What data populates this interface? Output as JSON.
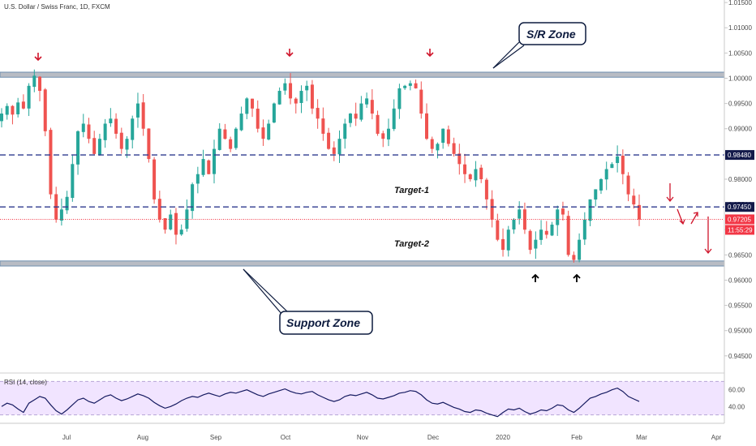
{
  "chart_data": {
    "type": "candlestick",
    "title": "U.S. Dollar / Swiss Franc, 1D, FXCM",
    "price_axis": {
      "ylim": [
        0.9416,
        1.0155
      ],
      "ticks": [
        "1.01500",
        "1.01000",
        "1.00500",
        "1.00000",
        "0.99500",
        "0.99000",
        "0.98500",
        "0.98000",
        "0.97500",
        "0.97000",
        "0.96500",
        "0.96000",
        "0.95500",
        "0.95000",
        "0.94500"
      ]
    },
    "time_axis": {
      "labels": [
        "Jul",
        "Aug",
        "Sep",
        "Oct",
        "Nov",
        "Dec",
        "2020",
        "Feb",
        "Mar",
        "Apr"
      ]
    },
    "close_path": [
      0.993,
      0.9945,
      0.9928,
      0.9952,
      0.994,
      0.9985,
      1.0005,
      0.9975,
      0.9895,
      0.977,
      0.972,
      0.974,
      0.9765,
      0.983,
      0.9895,
      0.991,
      0.988,
      0.985,
      0.988,
      0.991,
      0.992,
      0.989,
      0.986,
      0.988,
      0.992,
      0.995,
      0.99,
      0.984,
      0.976,
      0.972,
      0.97,
      0.973,
      0.969,
      0.97,
      0.974,
      0.979,
      0.981,
      0.984,
      0.981,
      0.986,
      0.99,
      0.988,
      0.986,
      0.99,
      0.993,
      0.996,
      0.994,
      0.99,
      0.988,
      0.991,
      0.995,
      0.9975,
      0.999,
      0.996,
      0.995,
      0.9975,
      0.9985,
      0.994,
      0.992,
      0.989,
      0.986,
      0.985,
      0.988,
      0.991,
      0.993,
      0.992,
      0.995,
      0.996,
      0.993,
      0.989,
      0.988,
      0.99,
      0.994,
      0.998,
      0.9985,
      0.999,
      0.998,
      0.993,
      0.988,
      0.986,
      0.987,
      0.99,
      0.987,
      0.985,
      0.983,
      0.981,
      0.98,
      0.982,
      0.98,
      0.976,
      0.972,
      0.968,
      0.966,
      0.97,
      0.972,
      0.974,
      0.97,
      0.966,
      0.968,
      0.97,
      0.969,
      0.971,
      0.974,
      0.973,
      0.965,
      0.964,
      0.968,
      0.972,
      0.976,
      0.978,
      0.98,
      0.982,
      0.983,
      0.9845,
      0.981,
      0.977,
      0.975,
      0.972
    ],
    "rsi": {
      "label": "RSI (14, close)",
      "ylim": [
        20,
        80
      ],
      "ticks": [
        "60.00",
        "40.00"
      ],
      "upper_band": 70,
      "lower_band": 30,
      "values": [
        40,
        44,
        42,
        37,
        33,
        44,
        48,
        52,
        50,
        42,
        35,
        31,
        36,
        42,
        48,
        50,
        46,
        44,
        48,
        52,
        54,
        50,
        47,
        49,
        52,
        55,
        53,
        50,
        45,
        41,
        38,
        40,
        43,
        47,
        50,
        52,
        51,
        54,
        56,
        54,
        52,
        55,
        57,
        56,
        58,
        60,
        57,
        54,
        52,
        55,
        57,
        59,
        61,
        58,
        56,
        55,
        57,
        58,
        54,
        51,
        48,
        46,
        48,
        52,
        54,
        53,
        55,
        57,
        54,
        50,
        49,
        51,
        53,
        56,
        57,
        59,
        58,
        54,
        48,
        44,
        43,
        45,
        42,
        39,
        37,
        34,
        33,
        36,
        35,
        32,
        30,
        28,
        33,
        37,
        36,
        38,
        34,
        31,
        33,
        36,
        35,
        38,
        42,
        41,
        36,
        33,
        38,
        44,
        50,
        52,
        55,
        57,
        60,
        62,
        58,
        52,
        49,
        46
      ]
    },
    "levels": {
      "resistance_zone": [
        1.0002,
        1.0012
      ],
      "support_zone": [
        0.9628,
        0.9638
      ],
      "level_1": 0.9848,
      "level_2": 0.9745,
      "current_price": 0.97205
    },
    "price_tags": [
      {
        "text": "0.98480",
        "color": "#131a4a"
      },
      {
        "text": "0.97450",
        "color": "#131a4a"
      },
      {
        "text": "0.97205",
        "color": "#f23645"
      },
      {
        "text": "11:55:29",
        "color": "#f23645"
      }
    ],
    "annotations": {
      "sr_zone": "S/R Zone",
      "support_zone": "Support Zone",
      "target_1": "Target-1",
      "target_2": "Target-2"
    },
    "colors": {
      "up": "#26a69a",
      "down": "#ef5350",
      "zone_fill": "#b8bcc4",
      "zone_border": "#6f8fb0",
      "dashed": "#2f3a8f",
      "rsi_line": "#151a60",
      "rsi_band": "#f1e4ff",
      "arrow_red": "#d0152b",
      "arrow_black": "#000000"
    }
  }
}
